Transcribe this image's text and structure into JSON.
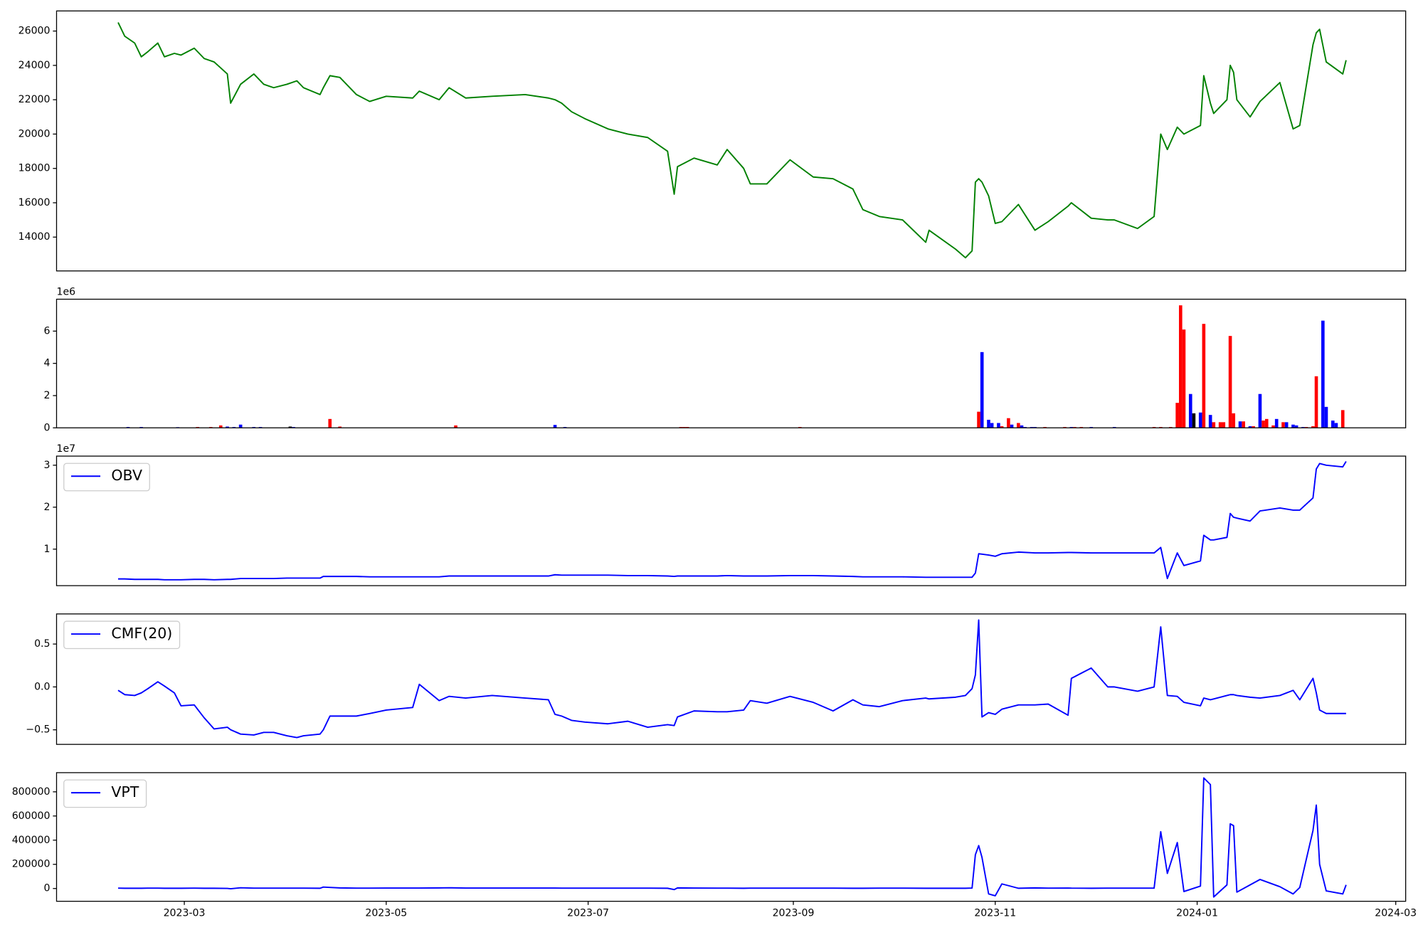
{
  "chart_data": [
    {
      "type": "line",
      "color": "#008000",
      "x": [
        39,
        41,
        44,
        46,
        48,
        51,
        53,
        56,
        58,
        62,
        65,
        68,
        72,
        73,
        76,
        80,
        83,
        86,
        90,
        93,
        95,
        100,
        101,
        103,
        106,
        111,
        115,
        120,
        128,
        130,
        136,
        139,
        144,
        152,
        162,
        169,
        171,
        173,
        176,
        180,
        187,
        193,
        199,
        205,
        207,
        208,
        213,
        220,
        223,
        228,
        230,
        235,
        242,
        249,
        255,
        261,
        264,
        269,
        276,
        283,
        284,
        292,
        295,
        297,
        298,
        299,
        300,
        302,
        304,
        306,
        311,
        316,
        320,
        326,
        327,
        333,
        338,
        340,
        347,
        352,
        354,
        356,
        359,
        361,
        366,
        367,
        369,
        370,
        374,
        375,
        376,
        377,
        381,
        384,
        390,
        394,
        396,
        400,
        401,
        402,
        404,
        409,
        410
      ],
      "values": [
        26500,
        25700,
        25300,
        24500,
        24800,
        25300,
        24500,
        24700,
        24600,
        25000,
        24400,
        24200,
        23500,
        21800,
        22900,
        23500,
        22900,
        22700,
        22900,
        23100,
        22700,
        22300,
        22700,
        23400,
        23300,
        22300,
        21900,
        22200,
        22100,
        22500,
        22000,
        22700,
        22100,
        22200,
        22300,
        22100,
        22000,
        21800,
        21300,
        20900,
        20300,
        20000,
        19800,
        19000,
        16500,
        18100,
        18600,
        18200,
        19100,
        18000,
        17100,
        17100,
        18500,
        17500,
        17400,
        16800,
        15600,
        15200,
        15000,
        13700,
        14400,
        13300,
        12800,
        13200,
        17200,
        17400,
        17200,
        16400,
        14800,
        14900,
        15900,
        14400,
        14900,
        15800,
        16000,
        15100,
        15000,
        15000,
        14500,
        15200,
        20000,
        19100,
        20400,
        20000,
        20500,
        23400,
        21800,
        21200,
        22000,
        24000,
        23600,
        22000,
        21000,
        21900,
        23000,
        20300,
        20500,
        25200,
        25900,
        26100,
        24200,
        23500,
        24300
      ],
      "xlim": [
        20.4,
        428
      ],
      "ylim": [
        12030,
        27170
      ],
      "yticks": [
        14000,
        16000,
        18000,
        20000,
        22000,
        24000,
        26000
      ]
    },
    {
      "type": "bar",
      "offset_label": "1e6",
      "x": [
        42,
        46,
        57,
        63,
        67,
        70,
        72,
        74,
        76,
        80,
        82,
        91,
        92,
        103,
        106,
        141,
        171,
        174,
        209,
        210,
        211,
        245,
        299,
        300,
        302,
        303,
        305,
        306,
        308,
        309,
        311,
        312,
        313,
        315,
        316,
        319,
        325,
        327,
        328,
        330,
        333,
        340,
        352,
        354,
        357,
        359,
        360,
        361,
        363,
        364,
        366,
        367,
        369,
        370,
        372,
        373,
        375,
        376,
        378,
        379,
        381,
        382,
        384,
        385,
        386,
        388,
        389,
        391,
        392,
        394,
        395,
        397,
        398,
        400,
        401,
        403,
        404,
        406,
        407,
        409
      ],
      "values": [
        0.05,
        0.05,
        0.04,
        0.05,
        0.05,
        0.15,
        0.08,
        0.05,
        0.2,
        0.05,
        0.05,
        0.08,
        0.05,
        0.55,
        0.08,
        0.15,
        0.18,
        0.05,
        0.05,
        0.05,
        0.05,
        0.05,
        1.0,
        4.7,
        0.5,
        0.3,
        0.3,
        0.1,
        0.6,
        0.2,
        0.3,
        0.15,
        0.05,
        0.05,
        0.05,
        0.05,
        0.05,
        0.05,
        0.05,
        0.05,
        0.05,
        0.05,
        0.05,
        0.05,
        0.05,
        1.55,
        7.6,
        6.1,
        2.1,
        0.9,
        0.95,
        6.45,
        0.8,
        0.35,
        0.35,
        0.35,
        5.7,
        0.9,
        0.4,
        0.4,
        0.1,
        0.1,
        2.1,
        0.45,
        0.55,
        0.15,
        0.55,
        0.35,
        0.35,
        0.2,
        0.15,
        0.05,
        0.05,
        0.1,
        3.2,
        6.65,
        1.3,
        0.45,
        0.3,
        1.1
      ],
      "colors": [
        "#0000ff",
        "#0000ff",
        "#0000ff",
        "#ff0000",
        "#ff0000",
        "#ff0000",
        "#0000ff",
        "#0000ff",
        "#0000ff",
        "#0000ff",
        "#0000ff",
        "#000000",
        "#0000ff",
        "#ff0000",
        "#ff0000",
        "#ff0000",
        "#0000ff",
        "#0000ff",
        "#ff0000",
        "#ff0000",
        "#ff0000",
        "#ff0000",
        "#ff0000",
        "#0000ff",
        "#0000ff",
        "#0000ff",
        "#0000ff",
        "#ff0000",
        "#ff0000",
        "#0000ff",
        "#ff0000",
        "#0000ff",
        "#0000ff",
        "#0000ff",
        "#0000ff",
        "#ff0000",
        "#ff0000",
        "#0000ff",
        "#ff0000",
        "#ff0000",
        "#0000ff",
        "#0000ff",
        "#ff0000",
        "#ff0000",
        "#ff0000",
        "#ff0000",
        "#ff0000",
        "#ff0000",
        "#0000ff",
        "#000000",
        "#0000ff",
        "#ff0000",
        "#0000ff",
        "#ff0000",
        "#ff0000",
        "#ff0000",
        "#ff0000",
        "#ff0000",
        "#0000ff",
        "#ff0000",
        "#0000ff",
        "#ff0000",
        "#0000ff",
        "#ff0000",
        "#ff0000",
        "#ff0000",
        "#0000ff",
        "#ff0000",
        "#0000ff",
        "#0000ff",
        "#0000ff",
        "#0000ff",
        "#ff0000",
        "#ff0000",
        "#ff0000",
        "#0000ff",
        "#0000ff",
        "#0000ff",
        "#0000ff",
        "#ff0000"
      ],
      "xlim": [
        20.4,
        428
      ],
      "ylim": [
        0,
        7.98
      ],
      "yticks": [
        0,
        2,
        4,
        6
      ]
    },
    {
      "type": "line",
      "offset_label": "1e7",
      "legend": "upper left",
      "x": [
        39,
        41,
        44,
        46,
        48,
        51,
        53,
        56,
        58,
        62,
        65,
        68,
        72,
        73,
        76,
        80,
        83,
        86,
        90,
        93,
        95,
        100,
        101,
        103,
        106,
        111,
        115,
        120,
        128,
        130,
        136,
        139,
        144,
        152,
        162,
        169,
        171,
        173,
        176,
        180,
        187,
        193,
        199,
        205,
        207,
        208,
        213,
        220,
        223,
        228,
        230,
        235,
        242,
        249,
        255,
        261,
        264,
        269,
        276,
        283,
        284,
        292,
        295,
        297,
        298,
        299,
        300,
        302,
        304,
        306,
        311,
        316,
        320,
        326,
        327,
        333,
        338,
        340,
        347,
        352,
        354,
        356,
        359,
        361,
        366,
        367,
        369,
        370,
        374,
        375,
        376,
        377,
        381,
        384,
        390,
        394,
        396,
        400,
        401,
        402,
        404,
        409,
        410
      ],
      "series": [
        {
          "name": "OBV",
          "color": "#0000ff",
          "values": [
            0.29,
            0.29,
            0.28,
            0.28,
            0.28,
            0.28,
            0.27,
            0.27,
            0.27,
            0.28,
            0.28,
            0.27,
            0.28,
            0.28,
            0.3,
            0.3,
            0.3,
            0.3,
            0.31,
            0.31,
            0.31,
            0.31,
            0.35,
            0.35,
            0.35,
            0.35,
            0.34,
            0.34,
            0.34,
            0.34,
            0.34,
            0.36,
            0.36,
            0.36,
            0.36,
            0.36,
            0.39,
            0.38,
            0.38,
            0.38,
            0.38,
            0.37,
            0.37,
            0.36,
            0.35,
            0.36,
            0.36,
            0.36,
            0.37,
            0.36,
            0.36,
            0.36,
            0.37,
            0.37,
            0.36,
            0.35,
            0.34,
            0.34,
            0.34,
            0.33,
            0.33,
            0.33,
            0.33,
            0.33,
            0.43,
            0.89,
            0.88,
            0.86,
            0.83,
            0.89,
            0.93,
            0.91,
            0.91,
            0.92,
            0.92,
            0.91,
            0.91,
            0.91,
            0.91,
            0.91,
            1.04,
            0.3,
            0.91,
            0.61,
            0.72,
            1.33,
            1.22,
            1.22,
            1.28,
            1.85,
            1.76,
            1.74,
            1.67,
            1.91,
            1.98,
            1.93,
            1.93,
            2.22,
            2.91,
            3.04,
            3.0,
            2.96,
            3.09
          ]
        }
      ],
      "xlim": [
        20.4,
        428
      ],
      "ylim": [
        0.13,
        3.217
      ],
      "yticks": [
        1,
        2,
        3
      ]
    },
    {
      "type": "line",
      "legend": "upper left",
      "x": [
        39,
        41,
        44,
        46,
        48,
        51,
        53,
        56,
        58,
        62,
        65,
        68,
        72,
        73,
        76,
        80,
        83,
        86,
        90,
        93,
        95,
        100,
        101,
        103,
        106,
        111,
        115,
        120,
        128,
        130,
        136,
        139,
        144,
        152,
        162,
        169,
        171,
        173,
        176,
        180,
        187,
        193,
        199,
        205,
        207,
        208,
        213,
        220,
        223,
        228,
        230,
        235,
        242,
        249,
        255,
        261,
        264,
        269,
        276,
        283,
        284,
        292,
        295,
        297,
        298,
        299,
        300,
        302,
        304,
        306,
        311,
        316,
        320,
        326,
        327,
        333,
        338,
        340,
        347,
        352,
        354,
        356,
        359,
        361,
        366,
        367,
        369,
        370,
        374,
        375,
        376,
        377,
        381,
        384,
        390,
        394,
        396,
        400,
        401,
        402,
        404,
        409,
        410
      ],
      "series": [
        {
          "name": "CMF(20)",
          "color": "#0000ff",
          "values": [
            -0.04,
            -0.09,
            -0.1,
            -0.07,
            -0.02,
            0.06,
            0.01,
            -0.07,
            -0.22,
            -0.21,
            -0.36,
            -0.49,
            -0.47,
            -0.5,
            -0.55,
            -0.56,
            -0.53,
            -0.53,
            -0.57,
            -0.59,
            -0.57,
            -0.55,
            -0.5,
            -0.34,
            -0.34,
            -0.34,
            -0.31,
            -0.27,
            -0.24,
            0.03,
            -0.16,
            -0.11,
            -0.13,
            -0.1,
            -0.13,
            -0.15,
            -0.32,
            -0.34,
            -0.39,
            -0.41,
            -0.43,
            -0.4,
            -0.47,
            -0.44,
            -0.45,
            -0.35,
            -0.28,
            -0.29,
            -0.29,
            -0.27,
            -0.16,
            -0.19,
            -0.11,
            -0.18,
            -0.28,
            -0.15,
            -0.21,
            -0.23,
            -0.16,
            -0.13,
            -0.14,
            -0.12,
            -0.1,
            -0.02,
            0.14,
            0.78,
            -0.35,
            -0.3,
            -0.32,
            -0.26,
            -0.21,
            -0.21,
            -0.2,
            -0.33,
            0.1,
            0.22,
            0.0,
            0.0,
            -0.05,
            0.0,
            0.7,
            -0.1,
            -0.11,
            -0.18,
            -0.22,
            -0.13,
            -0.15,
            -0.14,
            -0.1,
            -0.09,
            -0.09,
            -0.1,
            -0.12,
            -0.13,
            -0.1,
            -0.04,
            -0.15,
            0.1,
            -0.07,
            -0.27,
            -0.31,
            -0.31,
            -0.31
          ]
        }
      ],
      "xlim": [
        20.4,
        428
      ],
      "ylim": [
        -0.67,
        0.851
      ],
      "yticks": [
        {
          "value": -0.5,
          "label": "−0.5"
        },
        {
          "value": 0,
          "label": "0.0"
        },
        0.5
      ]
    },
    {
      "type": "line",
      "legend": "upper left",
      "x": [
        39,
        41,
        44,
        46,
        48,
        51,
        53,
        56,
        58,
        62,
        65,
        68,
        72,
        73,
        76,
        80,
        83,
        86,
        90,
        93,
        95,
        100,
        101,
        103,
        106,
        111,
        115,
        120,
        128,
        130,
        136,
        139,
        144,
        152,
        162,
        169,
        171,
        173,
        176,
        180,
        187,
        193,
        199,
        205,
        207,
        208,
        213,
        220,
        223,
        228,
        230,
        235,
        242,
        249,
        255,
        261,
        264,
        269,
        276,
        283,
        284,
        292,
        295,
        297,
        298,
        299,
        300,
        302,
        304,
        306,
        311,
        316,
        320,
        326,
        327,
        333,
        338,
        340,
        347,
        352,
        354,
        356,
        359,
        361,
        366,
        367,
        369,
        370,
        374,
        375,
        376,
        377,
        381,
        384,
        390,
        394,
        396,
        400,
        401,
        402,
        404,
        409,
        410
      ],
      "series": [
        {
          "name": "VPT",
          "color": "#0000ff",
          "values": [
            3000,
            2000,
            2000,
            2000,
            3000,
            3000,
            2000,
            2000,
            2000,
            3000,
            2000,
            2000,
            1000,
            -2000,
            6000,
            3000,
            3000,
            3000,
            3000,
            3000,
            3000,
            2000,
            12000,
            9000,
            5000,
            3000,
            3000,
            4000,
            4000,
            4000,
            5000,
            6000,
            4000,
            4000,
            4000,
            4000,
            4000,
            3000,
            3000,
            3000,
            3000,
            3000,
            3000,
            2000,
            -9000,
            5000,
            4000,
            3000,
            3000,
            2000,
            3000,
            3000,
            3000,
            3000,
            3000,
            2000,
            2000,
            3000,
            3000,
            2000,
            2000,
            2000,
            2000,
            4000,
            280000,
            355000,
            257000,
            -45000,
            -60000,
            38000,
            2000,
            5000,
            3000,
            4000,
            3000,
            2000,
            3000,
            3000,
            3000,
            3000,
            470000,
            125000,
            380000,
            -25000,
            20000,
            915000,
            860000,
            -70000,
            30000,
            535000,
            520000,
            -30000,
            30000,
            75000,
            15000,
            -45000,
            8000,
            480000,
            690000,
            200000,
            -20000,
            -45000,
            30000
          ]
        }
      ],
      "xlim": [
        20.4,
        428
      ],
      "ylim": [
        -105700,
        958500
      ],
      "yticks": [
        0,
        200000,
        400000,
        600000,
        800000
      ],
      "xticks": [
        {
          "value": 59,
          "label": "2023-03"
        },
        {
          "value": 120,
          "label": "2023-05"
        },
        {
          "value": 181,
          "label": "2023-07"
        },
        {
          "value": 243,
          "label": "2023-09"
        },
        {
          "value": 304,
          "label": "2023-11"
        },
        {
          "value": 365,
          "label": "2024-01"
        },
        {
          "value": 425,
          "label": "2024-03"
        }
      ]
    }
  ]
}
